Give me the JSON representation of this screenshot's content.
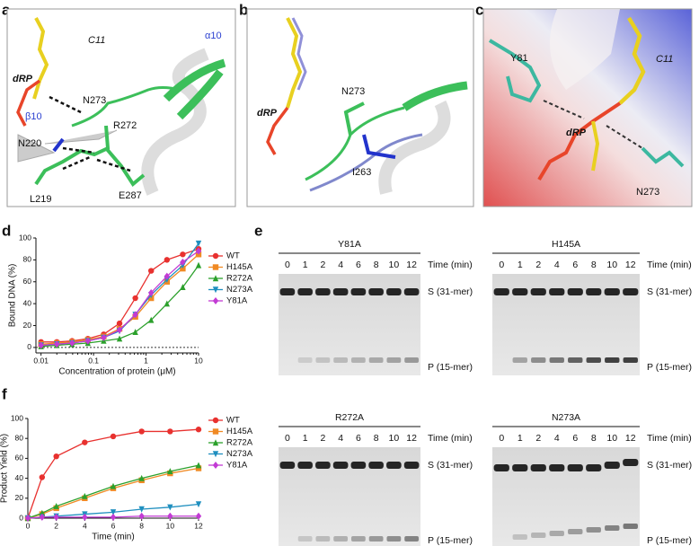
{
  "panel_letters": [
    "a",
    "b",
    "c",
    "d",
    "e",
    "f"
  ],
  "structures": {
    "a": [
      "C11",
      "dRP",
      "N273",
      "α10",
      "β10",
      "R272",
      "N220",
      "L219",
      "E287"
    ],
    "b": [
      "dRP",
      "N273",
      "I263"
    ],
    "c": [
      "Y81",
      "C11",
      "dRP",
      "N273"
    ]
  },
  "gels": {
    "lanes": [
      "0",
      "1",
      "2",
      "4",
      "6",
      "8",
      "10",
      "12"
    ],
    "time_label": "Time (min)",
    "substrate": "S (31-mer)",
    "product": "P (15-mer)",
    "mutants": [
      "Y81A",
      "H145A",
      "R272A",
      "N273A"
    ]
  },
  "chart_data": [
    {
      "type": "line",
      "xscale": "log",
      "y_label": "Bound DNA (%)",
      "x_label": "Concentration of protein (μM)",
      "x": [
        0.01,
        0.02,
        0.039,
        0.078,
        0.156,
        0.3125,
        0.625,
        1.25,
        2.5,
        5,
        10
      ],
      "xlim": [
        0.008,
        10
      ],
      "xticks": [
        0.01,
        0.1,
        1,
        10
      ],
      "ylim": [
        -5,
        100
      ],
      "yticks": [
        0,
        20,
        40,
        60,
        80,
        100
      ],
      "zero_line": true,
      "series": [
        {
          "name": "WT",
          "color": "#e8312f",
          "marker": "circle",
          "values": [
            5,
            5,
            6,
            8,
            12,
            22,
            45,
            70,
            80,
            85,
            90
          ]
        },
        {
          "name": "H145A",
          "color": "#f08a24",
          "marker": "square",
          "values": [
            3,
            4,
            5,
            7,
            10,
            17,
            28,
            45,
            60,
            72,
            85
          ]
        },
        {
          "name": "R272A",
          "color": "#2ca02c",
          "marker": "triangle-up",
          "values": [
            1,
            2,
            3,
            4,
            6,
            8,
            14,
            25,
            40,
            55,
            75
          ]
        },
        {
          "name": "N273A",
          "color": "#1f8fbf",
          "marker": "triangle-down",
          "values": [
            2,
            3,
            4,
            6,
            9,
            15,
            30,
            48,
            62,
            75,
            95
          ]
        },
        {
          "name": "Y81A",
          "color": "#c23bd4",
          "marker": "diamond",
          "values": [
            2,
            3,
            4,
            6,
            9,
            16,
            30,
            50,
            65,
            78,
            88
          ]
        }
      ]
    },
    {
      "type": "line",
      "y_label": "Product Yield (%)",
      "x_label": "Time (min)",
      "x": [
        0,
        1,
        2,
        4,
        6,
        8,
        10,
        12
      ],
      "xlim": [
        0,
        12
      ],
      "xticks": [
        0,
        2,
        4,
        6,
        8,
        10,
        12
      ],
      "ylim": [
        0,
        100
      ],
      "yticks": [
        0,
        20,
        40,
        60,
        80,
        100
      ],
      "series": [
        {
          "name": "WT",
          "color": "#e8312f",
          "marker": "circle",
          "values": [
            0,
            41,
            62,
            76,
            82,
            87,
            87,
            89
          ]
        },
        {
          "name": "H145A",
          "color": "#f08a24",
          "marker": "square",
          "values": [
            0,
            4,
            10,
            20,
            30,
            38,
            45,
            50
          ]
        },
        {
          "name": "R272A",
          "color": "#2ca02c",
          "marker": "triangle-up",
          "values": [
            0,
            5,
            12,
            22,
            32,
            40,
            47,
            53
          ]
        },
        {
          "name": "N273A",
          "color": "#1f8fbf",
          "marker": "triangle-down",
          "values": [
            0,
            1,
            2,
            4,
            6,
            9,
            11,
            14
          ]
        },
        {
          "name": "Y81A",
          "color": "#c23bd4",
          "marker": "diamond",
          "values": [
            0,
            1,
            1,
            1,
            1,
            2,
            2,
            2
          ]
        }
      ]
    }
  ]
}
